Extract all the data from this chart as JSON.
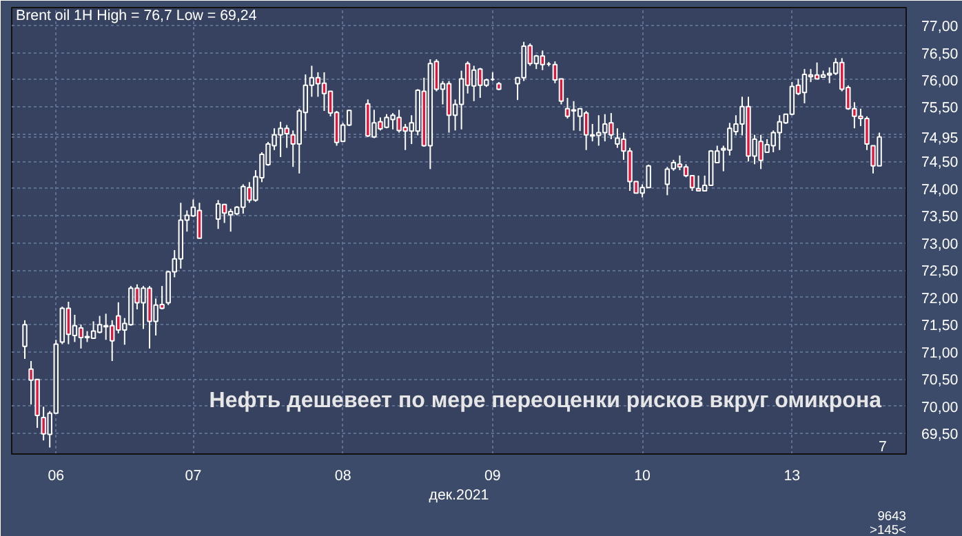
{
  "chart_data": {
    "type": "candlestick",
    "title": "Brent oil 1H High = 76,7 Low = 69,24",
    "xlabel": "дек.2021",
    "annotations": [
      "Нефть дешевеет по мере переоценки рисков вкруг омикрона",
      "7",
      "9643",
      ">145<"
    ],
    "categories": [
      null,
      null,
      null,
      null,
      null,
      "06",
      null,
      null,
      null,
      null,
      null,
      null,
      null,
      null,
      null,
      null,
      null,
      null,
      null,
      null,
      null,
      null,
      null,
      null,
      null,
      null,
      null,
      "07",
      null,
      null,
      null,
      null,
      null,
      null,
      null,
      null,
      null,
      null,
      null,
      null,
      null,
      null,
      null,
      null,
      null,
      null,
      null,
      null,
      null,
      null,
      null,
      "08",
      null,
      null,
      null,
      null,
      null,
      null,
      null,
      null,
      null,
      null,
      null,
      null,
      null,
      null,
      null,
      null,
      null,
      null,
      null,
      null,
      null,
      null,
      null,
      "09",
      null,
      null,
      null,
      null,
      null,
      null,
      null,
      null,
      null,
      null,
      null,
      null,
      null,
      null,
      null,
      null,
      null,
      null,
      null,
      null,
      null,
      null,
      null,
      "10",
      null,
      null,
      null,
      null,
      null,
      null,
      null,
      null,
      null,
      null,
      null,
      null,
      null,
      null,
      null,
      null,
      null,
      null,
      null,
      null,
      null,
      null,
      null,
      "13",
      null,
      null,
      null,
      null,
      null,
      null,
      null,
      null,
      null,
      null,
      null,
      null,
      null,
      null
    ],
    "ohlc": [
      [
        71.1,
        71.58,
        70.87,
        71.5
      ],
      [
        70.68,
        70.83,
        70.03,
        70.48
      ],
      [
        70.49,
        70.49,
        69.6,
        69.83
      ],
      [
        69.79,
        69.99,
        69.37,
        69.49
      ],
      [
        69.48,
        69.91,
        69.24,
        69.87
      ],
      [
        69.87,
        71.22,
        69.87,
        71.14
      ],
      [
        71.18,
        71.83,
        71.14,
        71.8
      ],
      [
        71.8,
        71.92,
        71.14,
        71.32
      ],
      [
        71.3,
        71.68,
        71.18,
        71.48
      ],
      [
        71.44,
        71.5,
        71.06,
        71.26
      ],
      [
        71.26,
        71.38,
        71.18,
        71.28
      ],
      [
        71.25,
        71.56,
        71.25,
        71.38
      ],
      [
        71.36,
        71.66,
        71.34,
        71.5
      ],
      [
        71.46,
        71.7,
        71.22,
        71.48
      ],
      [
        71.48,
        71.58,
        70.83,
        71.2
      ],
      [
        71.66,
        71.91,
        71.34,
        71.4
      ],
      [
        71.4,
        71.62,
        71.13,
        71.52
      ],
      [
        71.5,
        72.21,
        71.48,
        72.17
      ],
      [
        72.17,
        72.24,
        71.78,
        71.9
      ],
      [
        71.9,
        72.21,
        71.42,
        72.17
      ],
      [
        72.17,
        72.21,
        71.06,
        71.56
      ],
      [
        71.56,
        71.98,
        71.3,
        71.86
      ],
      [
        71.87,
        72.21,
        71.78,
        71.8
      ],
      [
        71.9,
        72.49,
        71.86,
        72.47
      ],
      [
        72.47,
        72.87,
        72.37,
        72.71
      ],
      [
        72.71,
        73.74,
        72.53,
        73.42
      ],
      [
        73.42,
        73.6,
        73.21,
        73.51
      ],
      [
        73.5,
        73.8,
        73.48,
        73.66
      ],
      [
        73.6,
        73.74,
        73.09,
        73.09
      ],
      null,
      null,
      [
        73.44,
        73.79,
        73.26,
        73.72
      ],
      [
        73.71,
        73.72,
        73.37,
        73.55
      ],
      [
        73.52,
        73.63,
        73.21,
        73.58
      ],
      [
        73.54,
        73.68,
        73.51,
        73.66
      ],
      [
        73.66,
        74.08,
        73.54,
        74.04
      ],
      [
        74.02,
        74.12,
        73.74,
        73.79
      ],
      [
        73.79,
        74.34,
        73.76,
        74.22
      ],
      [
        74.2,
        74.67,
        74.12,
        74.63
      ],
      [
        74.44,
        74.86,
        74.42,
        74.82
      ],
      [
        74.79,
        75.11,
        74.71,
        74.99
      ],
      [
        74.99,
        75.23,
        74.58,
        75.11
      ],
      [
        75.11,
        75.17,
        74.75,
        75.01
      ],
      [
        74.99,
        75.07,
        74.4,
        74.82
      ],
      [
        74.82,
        75.47,
        74.28,
        75.43
      ],
      [
        75.4,
        76.1,
        75.06,
        75.9
      ],
      [
        75.9,
        76.26,
        75.69,
        76.04
      ],
      [
        76.04,
        76.14,
        75.69,
        75.93
      ],
      [
        75.94,
        76.14,
        75.43,
        75.75
      ],
      [
        75.79,
        75.79,
        75.33,
        75.39
      ],
      [
        75.4,
        75.43,
        74.79,
        74.85
      ],
      [
        74.87,
        75.21,
        74.87,
        75.17
      ],
      [
        75.17,
        75.44,
        75.15,
        75.44
      ],
      null,
      null,
      [
        75.56,
        75.64,
        74.95,
        74.97
      ],
      [
        74.95,
        75.45,
        74.93,
        75.21
      ],
      [
        75.23,
        75.31,
        75.07,
        75.1
      ],
      [
        75.13,
        75.37,
        75.11,
        75.31
      ],
      [
        75.27,
        75.39,
        75.09,
        75.35
      ],
      [
        75.31,
        75.45,
        75.03,
        75.07
      ],
      [
        75.13,
        75.19,
        74.71,
        75.06
      ],
      [
        75.06,
        75.35,
        74.82,
        75.21
      ],
      [
        75.06,
        75.83,
        74.98,
        75.81
      ],
      [
        75.79,
        76.04,
        74.77,
        74.79
      ],
      [
        74.79,
        76.38,
        74.36,
        76.3
      ],
      [
        76.34,
        76.38,
        75.79,
        75.83
      ],
      [
        75.83,
        75.98,
        75.55,
        75.93
      ],
      [
        75.93,
        75.98,
        75.03,
        75.35
      ],
      [
        75.35,
        75.64,
        75.07,
        75.55
      ],
      [
        75.55,
        76.17,
        75.09,
        76.02
      ],
      [
        76.3,
        76.34,
        75.75,
        75.9
      ],
      [
        75.89,
        76.26,
        75.61,
        76.18
      ],
      [
        76.2,
        76.22,
        75.67,
        75.9
      ],
      [
        75.9,
        76.02,
        75.87,
        76.0
      ],
      [
        76.01,
        76.14,
        75.98,
        76.01
      ],
      [
        75.93,
        75.96,
        75.81,
        75.83
      ],
      null,
      null,
      [
        75.93,
        76.04,
        75.63,
        76.04
      ],
      [
        76.04,
        76.7,
        75.98,
        76.62
      ],
      [
        76.63,
        76.67,
        76.26,
        76.3
      ],
      [
        76.3,
        76.46,
        76.2,
        76.44
      ],
      [
        76.44,
        76.54,
        76.18,
        76.28
      ],
      [
        76.29,
        76.33,
        76.25,
        76.29
      ],
      [
        76.28,
        76.34,
        75.94,
        76.0
      ],
      [
        76.02,
        76.02,
        75.55,
        75.61
      ],
      [
        75.47,
        75.67,
        75.29,
        75.33
      ],
      [
        75.43,
        75.61,
        75.07,
        75.45
      ],
      [
        75.33,
        75.47,
        75.06,
        75.47
      ],
      [
        75.39,
        75.43,
        74.71,
        74.99
      ],
      [
        74.99,
        75.19,
        74.87,
        74.97
      ],
      [
        74.98,
        75.35,
        74.79,
        75.03
      ],
      [
        75.03,
        75.37,
        74.87,
        75.19
      ],
      [
        75.21,
        75.39,
        74.91,
        74.99
      ],
      [
        74.82,
        75.11,
        74.75,
        74.93
      ],
      [
        74.91,
        75.03,
        74.53,
        74.69
      ],
      [
        74.69,
        74.75,
        73.96,
        74.13
      ],
      [
        74.13,
        74.13,
        73.92,
        73.92
      ],
      [
        73.92,
        74.08,
        73.84,
        74.02
      ],
      [
        74.02,
        74.44,
        74.02,
        74.42
      ],
      null,
      null,
      [
        74.08,
        74.4,
        73.88,
        74.36
      ],
      [
        74.37,
        74.53,
        74.33,
        74.48
      ],
      [
        74.45,
        74.61,
        74.34,
        74.4
      ],
      [
        74.4,
        74.45,
        74.21,
        74.24
      ],
      [
        74.24,
        74.24,
        73.96,
        74.02
      ],
      [
        74.0,
        74.24,
        73.96,
        73.96
      ],
      [
        73.96,
        74.24,
        73.96,
        74.06
      ],
      [
        74.06,
        74.71,
        74.06,
        74.69
      ],
      [
        74.48,
        74.79,
        74.48,
        74.69
      ],
      [
        74.71,
        74.79,
        74.32,
        74.74
      ],
      [
        74.71,
        75.21,
        74.61,
        75.11
      ],
      [
        75.05,
        75.35,
        74.98,
        75.19
      ],
      [
        75.19,
        75.69,
        74.98,
        75.51
      ],
      [
        75.51,
        75.69,
        74.5,
        74.6
      ],
      [
        74.6,
        74.99,
        74.45,
        74.91
      ],
      [
        74.87,
        74.99,
        74.36,
        74.52
      ],
      [
        74.67,
        74.91,
        74.66,
        74.81
      ],
      [
        74.79,
        75.07,
        74.67,
        75.03
      ],
      [
        75.03,
        75.35,
        74.71,
        75.23
      ],
      [
        75.21,
        75.37,
        75.19,
        75.37
      ],
      [
        75.37,
        75.96,
        75.35,
        75.88
      ],
      [
        75.9,
        76.02,
        75.72,
        75.75
      ],
      [
        75.77,
        76.2,
        75.57,
        76.1
      ],
      [
        76.09,
        76.2,
        75.96,
        76.06
      ],
      [
        76.09,
        76.32,
        76.02,
        76.02
      ],
      [
        76.05,
        76.17,
        76.04,
        76.09
      ],
      [
        76.09,
        76.23,
        75.94,
        76.12
      ],
      [
        76.12,
        76.4,
        76.09,
        76.32
      ],
      [
        76.32,
        76.4,
        75.79,
        75.83
      ],
      [
        75.86,
        75.9,
        75.45,
        75.47
      ],
      [
        75.47,
        75.59,
        75.11,
        75.33
      ],
      [
        75.33,
        75.47,
        75.15,
        75.29
      ],
      [
        75.29,
        75.33,
        74.71,
        74.82
      ],
      [
        74.79,
        74.79,
        74.28,
        74.42
      ],
      [
        74.42,
        75.03,
        74.42,
        74.95
      ]
    ],
    "ylim": [
      69.12,
      77.33
    ],
    "yticks": [
      {
        "value": 69.5,
        "label": "69,50"
      },
      {
        "value": 70,
        "label": "70,00"
      },
      {
        "value": 70.5,
        "label": "70,50"
      },
      {
        "value": 71,
        "label": "71,00"
      },
      {
        "value": 71.5,
        "label": "71,50"
      },
      {
        "value": 72,
        "label": "72,00"
      },
      {
        "value": 72.5,
        "label": "72,50"
      },
      {
        "value": 73,
        "label": "73,00"
      },
      {
        "value": 73.5,
        "label": "73,50"
      },
      {
        "value": 74,
        "label": "74,00"
      },
      {
        "value": 74.5,
        "label": "74,50"
      },
      {
        "value": 74.95,
        "label": "74,95"
      },
      {
        "value": 75,
        "label": null
      },
      {
        "value": 75.5,
        "label": "75,50"
      },
      {
        "value": 76,
        "label": "76,00"
      },
      {
        "value": 76.5,
        "label": "76,50"
      },
      {
        "value": 77,
        "label": "77,00"
      }
    ],
    "grid": true
  }
}
